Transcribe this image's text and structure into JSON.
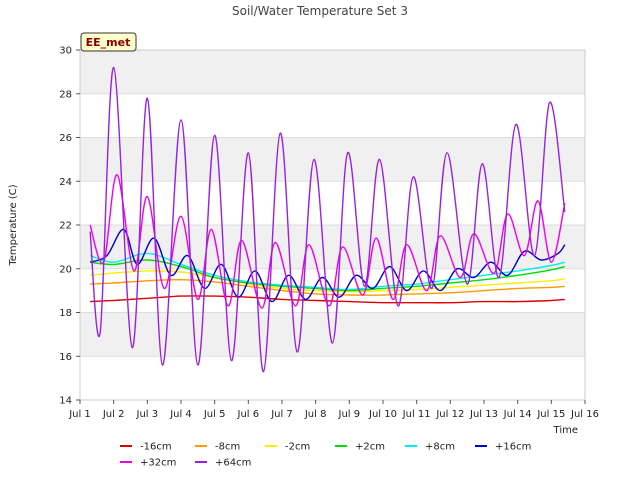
{
  "chart_data": {
    "type": "line",
    "title": "Soil/Water Temperature Set 3",
    "xlabel": "Time",
    "ylabel": "Temperature (C)",
    "badge": "EE_met",
    "xlim": [
      1,
      16
    ],
    "ylim": [
      14,
      30
    ],
    "xticks": [
      1,
      2,
      3,
      4,
      5,
      6,
      7,
      8,
      9,
      10,
      11,
      12,
      13,
      14,
      15,
      16
    ],
    "xtick_labels": [
      "Jul 1",
      "Jul 2",
      "Jul 3",
      "Jul 4",
      "Jul 5",
      "Jul 6",
      "Jul 7",
      "Jul 8",
      "Jul 9",
      "Jul 10",
      "Jul 11",
      "Jul 12",
      "Jul 13",
      "Jul 14",
      "Jul 15",
      "Jul 16"
    ],
    "yticks": [
      14,
      16,
      18,
      20,
      22,
      24,
      26,
      28,
      30
    ],
    "ytick_labels": [
      "14",
      "16",
      "18",
      "20",
      "22",
      "24",
      "26",
      "28",
      "30"
    ],
    "grid": true,
    "legend_position": "bottom",
    "series": [
      {
        "name": "-16cm",
        "color": "#dd0000",
        "x": [
          1.3,
          2,
          3,
          4,
          5,
          6,
          7,
          8,
          9,
          10,
          11,
          12,
          13,
          14,
          15,
          15.4
        ],
        "y": [
          18.5,
          18.55,
          18.65,
          18.75,
          18.75,
          18.7,
          18.6,
          18.55,
          18.5,
          18.45,
          18.45,
          18.45,
          18.5,
          18.5,
          18.55,
          18.6
        ]
      },
      {
        "name": "-8cm",
        "color": "#ff9900",
        "x": [
          1.3,
          2,
          3,
          4,
          5,
          6,
          7,
          8,
          9,
          10,
          11,
          12,
          13,
          14,
          15,
          15.4
        ],
        "y": [
          19.3,
          19.35,
          19.45,
          19.5,
          19.4,
          19.2,
          19.0,
          18.85,
          18.8,
          18.8,
          18.85,
          18.9,
          19.0,
          19.1,
          19.15,
          19.2
        ]
      },
      {
        "name": "-2cm",
        "color": "#ffee00",
        "x": [
          1.3,
          2,
          3,
          4,
          5,
          6,
          7,
          8,
          9,
          10,
          11,
          12,
          13,
          14,
          15,
          15.4
        ],
        "y": [
          19.7,
          19.8,
          19.9,
          19.85,
          19.6,
          19.3,
          19.1,
          19.0,
          18.95,
          19.0,
          19.05,
          19.15,
          19.25,
          19.35,
          19.45,
          19.55
        ]
      },
      {
        "name": "+2cm",
        "color": "#00dd00",
        "x": [
          1.3,
          2,
          3,
          4,
          5,
          6,
          7,
          8,
          9,
          10,
          11,
          12,
          13,
          14,
          15,
          15.4
        ],
        "y": [
          20.3,
          20.2,
          20.4,
          20.1,
          19.6,
          19.35,
          19.2,
          19.1,
          19.0,
          19.1,
          19.2,
          19.35,
          19.5,
          19.7,
          19.95,
          20.1
        ]
      },
      {
        "name": "+8cm",
        "color": "#00eeee",
        "x": [
          1.3,
          2,
          3,
          4,
          5,
          6,
          7,
          8,
          9,
          10,
          11,
          12,
          13,
          14,
          15,
          15.4
        ],
        "y": [
          20.6,
          20.3,
          20.7,
          20.2,
          19.7,
          19.4,
          19.25,
          19.15,
          19.05,
          19.2,
          19.3,
          19.5,
          19.7,
          19.9,
          20.15,
          20.3
        ]
      },
      {
        "name": "+16cm",
        "color": "#0000cc",
        "x": [
          1.3,
          1.8,
          2.3,
          2.7,
          3.2,
          3.7,
          4.2,
          4.7,
          5.2,
          5.7,
          6.2,
          6.7,
          7.2,
          7.7,
          8.2,
          8.7,
          9.2,
          9.7,
          10.2,
          10.7,
          11.2,
          11.7,
          12.2,
          12.7,
          13.2,
          13.7,
          14.2,
          14.7,
          15.2,
          15.4
        ],
        "y": [
          20.3,
          20.6,
          21.8,
          20.2,
          21.4,
          19.7,
          20.6,
          19.1,
          20.2,
          18.7,
          19.9,
          18.5,
          19.7,
          18.6,
          19.6,
          18.7,
          19.7,
          19.1,
          20.1,
          19.0,
          19.9,
          19.0,
          20.0,
          19.6,
          20.3,
          19.7,
          20.8,
          20.4,
          20.7,
          21.1
        ]
      },
      {
        "name": "+32cm",
        "color": "#ee00ee",
        "x": [
          1.3,
          1.7,
          2.1,
          2.6,
          3.0,
          3.5,
          4.0,
          4.5,
          4.9,
          5.4,
          5.8,
          6.4,
          6.8,
          7.4,
          7.8,
          8.4,
          8.8,
          9.4,
          9.8,
          10.3,
          10.7,
          11.3,
          11.7,
          12.3,
          12.7,
          13.3,
          13.7,
          14.2,
          14.6,
          15.0,
          15.4
        ],
        "y": [
          22.0,
          20.3,
          24.3,
          19.9,
          23.3,
          19.1,
          22.4,
          18.6,
          21.8,
          18.3,
          21.3,
          18.2,
          21.2,
          18.3,
          21.1,
          18.3,
          21.0,
          18.8,
          21.4,
          18.6,
          21.1,
          19.0,
          21.5,
          19.6,
          21.6,
          19.8,
          22.5,
          20.6,
          23.1,
          20.3,
          23.0
        ]
      },
      {
        "name": "+64cm",
        "color": "#9922dd",
        "x": [
          1.3,
          1.6,
          2.0,
          2.55,
          3.0,
          3.45,
          4.0,
          4.5,
          5.0,
          5.5,
          6.0,
          6.45,
          6.95,
          7.45,
          7.95,
          8.5,
          8.95,
          9.45,
          9.9,
          10.45,
          10.9,
          11.45,
          11.9,
          12.5,
          12.95,
          13.45,
          13.95,
          14.5,
          14.95,
          15.4
        ],
        "y": [
          21.7,
          17.1,
          29.2,
          16.4,
          27.8,
          15.6,
          26.8,
          15.6,
          26.1,
          15.8,
          25.3,
          15.3,
          26.2,
          16.2,
          25.0,
          16.6,
          25.3,
          19.2,
          25.0,
          18.3,
          24.2,
          19.1,
          25.3,
          19.3,
          24.8,
          19.6,
          26.6,
          20.6,
          27.6,
          22.6
        ]
      }
    ]
  }
}
